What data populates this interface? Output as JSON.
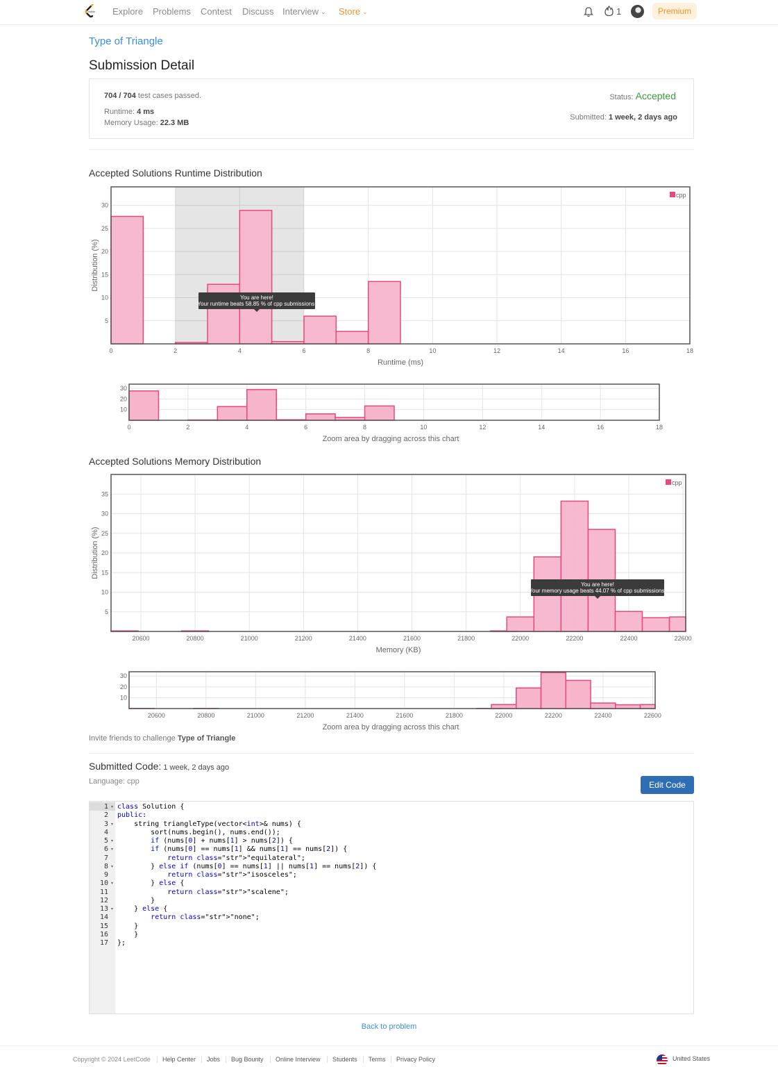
{
  "nav": {
    "items": [
      "Explore",
      "Problems",
      "Contest",
      "Discuss",
      "Interview",
      "Store"
    ],
    "fire_count": "1",
    "premium": "Premium"
  },
  "problem": {
    "title": "Type of Triangle"
  },
  "page_title": "Submission Detail",
  "detail": {
    "passed": "704 / 704",
    "passed_suffix": " test cases passed.",
    "runtime_label": "Runtime: ",
    "runtime": "4 ms",
    "memory_label": "Memory Usage: ",
    "memory": "22.3 MB",
    "status_label": "Status: ",
    "status": "Accepted",
    "submitted_label": "Submitted: ",
    "submitted": "1 week, 2 days ago"
  },
  "runtime_section_title": "Accepted Solutions Runtime Distribution",
  "memory_section_title": "Accepted Solutions Memory Distribution",
  "colors": {
    "bar_fill": "#f7b5cc",
    "bar_stroke": "#e8497a",
    "accent": "#3a8edd",
    "accepted": "#3c9a3c",
    "store": "#f0932b"
  },
  "chart_data": [
    {
      "type": "bar",
      "legend": "cpp",
      "xlabel": "Runtime (ms)",
      "ylabel": "Distribution (%)",
      "xlim": [
        0,
        18
      ],
      "ylim": [
        0,
        34
      ],
      "xticks": [
        0,
        2,
        4,
        6,
        8,
        10,
        12,
        14,
        16,
        18
      ],
      "yticks": [
        5,
        10,
        15,
        20,
        25,
        30
      ],
      "bin_width": 1,
      "x": [
        0,
        2,
        3,
        4,
        5,
        6,
        7,
        8
      ],
      "values": [
        27.6,
        0.3,
        12.9,
        28.9,
        0.5,
        6.0,
        2.7,
        13.5
      ],
      "highlight_range": [
        2,
        6
      ],
      "tooltip": {
        "title": "You are here!",
        "text": "Your runtime beats 58.85 % of cpp submissions."
      },
      "zoom": {
        "yticks": [
          10,
          20,
          30
        ],
        "caption": "Zoom area by dragging across this chart"
      }
    },
    {
      "type": "bar",
      "legend": "cpp",
      "xlabel": "Memory (KB)",
      "ylabel": "Distribution (%)",
      "xlim": [
        20490,
        22610
      ],
      "ylim": [
        0,
        40
      ],
      "xticks": [
        20600,
        20800,
        21000,
        21200,
        21400,
        21600,
        21800,
        22000,
        22200,
        22400,
        22600
      ],
      "yticks": [
        5,
        10,
        15,
        20,
        25,
        30,
        35
      ],
      "bin_width": 100,
      "x": [
        20490,
        20750,
        21890,
        21950,
        22050,
        22150,
        22250,
        22350,
        22450,
        22550
      ],
      "values": [
        0.15,
        0.15,
        0.15,
        3.7,
        19.0,
        33.2,
        26.0,
        5.1,
        3.5,
        3.7
      ],
      "tooltip": {
        "title": "You are here!",
        "text": "Your memory usage beats 44.07 % of cpp submissions."
      },
      "zoom": {
        "yticks": [
          10,
          20,
          30
        ],
        "caption": "Zoom area by dragging across this chart"
      }
    }
  ],
  "invite": {
    "prefix": "Invite friends to challenge ",
    "problem": "Type of Triangle"
  },
  "code": {
    "title": "Submitted Code:",
    "time": " 1 week, 2 days ago",
    "language": "Language: cpp",
    "edit_button": "Edit Code",
    "line_numbers": [
      "1",
      "2",
      "3",
      "4",
      "5",
      "6",
      "7",
      "8",
      "9",
      "10",
      "11",
      "12",
      "13",
      "14",
      "15",
      "16",
      "17"
    ],
    "folds": [
      "1",
      "3",
      "5",
      "6",
      "8",
      "10",
      "13"
    ],
    "lines": [
      "class Solution {",
      "public:",
      "    string triangleType(vector<int>& nums) {",
      "        sort(nums.begin(), nums.end());",
      "        if (nums[0] + nums[1] > nums[2]) {",
      "        if (nums[0] == nums[1] && nums[1] == nums[2]) {",
      "            return \"equilateral\";",
      "        } else if (nums[0] == nums[1] || nums[1] == nums[2]) {",
      "            return \"isosceles\";",
      "        } else {",
      "            return \"scalene\";",
      "        }",
      "    } else {",
      "        return \"none\";",
      "    }",
      "    }",
      "};"
    ]
  },
  "back_link": "Back to problem",
  "footer": {
    "copyright": "Copyright © 2024 LeetCode",
    "links": [
      "Help Center",
      "Jobs",
      "Bug Bounty",
      "Online Interview",
      "Students",
      "Terms",
      "Privacy Policy"
    ],
    "country": "United States"
  }
}
